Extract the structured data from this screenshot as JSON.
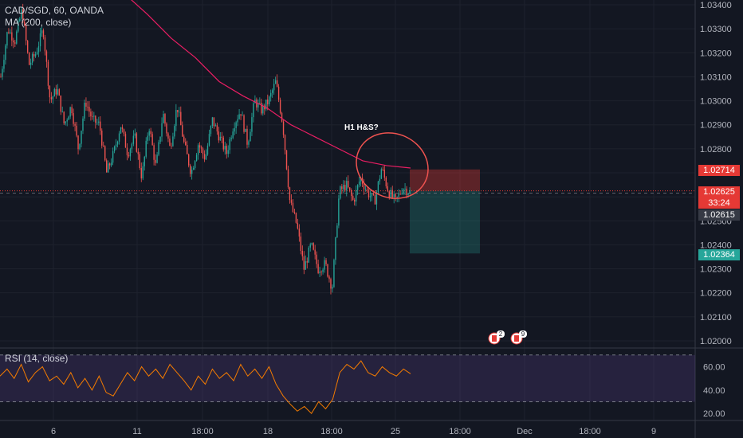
{
  "header": {
    "symbol_line": "CAD/SGD, 60, OANDA",
    "ma_label": "MA (200, close)",
    "rsi_label": "RSI (14, close)"
  },
  "annotation": {
    "text": "H1 H&S?"
  },
  "price_tags": {
    "stop": {
      "value": "1.02714",
      "color": "#e53935"
    },
    "current": {
      "value": "1.02625",
      "color": "#e53935"
    },
    "countdown": {
      "value": "33:24",
      "color": "#e53935"
    },
    "crosshair": {
      "value": "1.02615",
      "color": "#363a45"
    },
    "target": {
      "value": "1.02364",
      "color": "#26a69a"
    }
  },
  "events": [
    {
      "label": "2",
      "icon": "canada-flag-icon"
    },
    {
      "label": "9",
      "icon": "canada-flag-icon"
    }
  ],
  "chart_data": {
    "type": "candlestick",
    "symbol": "CAD/SGD",
    "interval": "60",
    "source": "OANDA",
    "y_axis_ticks": [
      "1.03400",
      "1.03300",
      "1.03200",
      "1.03100",
      "1.03000",
      "1.02900",
      "1.02800",
      "1.02700",
      "1.02600",
      "1.02500",
      "1.02400",
      "1.02300",
      "1.02200",
      "1.02100",
      "1.02000"
    ],
    "ylim": [
      1.0197,
      1.0342
    ],
    "x_axis_ticks": [
      "6",
      "11",
      "18:00",
      "18",
      "18:00",
      "25",
      "18:00",
      "Dec",
      "18:00",
      "9"
    ],
    "price_path": [
      1.031,
      1.033,
      1.0325,
      1.0338,
      1.0315,
      1.032,
      1.033,
      1.03,
      1.0305,
      1.029,
      1.0298,
      1.028,
      1.03,
      1.0292,
      1.029,
      1.027,
      1.0278,
      1.029,
      1.0278,
      1.0285,
      1.0268,
      1.029,
      1.0272,
      1.0295,
      1.028,
      1.0298,
      1.0282,
      1.027,
      1.0282,
      1.0276,
      1.0292,
      1.0285,
      1.0278,
      1.029,
      1.0296,
      1.0282,
      1.03,
      1.0296,
      1.03,
      1.0308,
      1.029,
      1.0258,
      1.0248,
      1.023,
      1.024,
      1.023,
      1.0232,
      1.0222,
      1.0262,
      1.0265,
      1.0258,
      1.0268,
      1.0262,
      1.0258,
      1.0272,
      1.0262,
      1.0258,
      1.0264,
      1.0262
    ],
    "ma_200_path": [
      1.0345,
      1.0336,
      1.0326,
      1.0318,
      1.0308,
      1.0302,
      1.0297,
      1.029,
      1.0285,
      1.028,
      1.0275,
      1.0273,
      1.0272
    ],
    "trade_box": {
      "entry": 1.02625,
      "stop": 1.02714,
      "target": 1.02364
    },
    "rsi": {
      "name": "RSI (14, close)",
      "ticks": [
        "60.00",
        "40.00",
        "20.00"
      ],
      "ylim": [
        14,
        76
      ],
      "bands": [
        70,
        30
      ],
      "values": [
        52,
        58,
        50,
        62,
        47,
        55,
        60,
        48,
        52,
        45,
        55,
        42,
        50,
        40,
        52,
        38,
        35,
        45,
        55,
        48,
        60,
        52,
        58,
        50,
        62,
        55,
        48,
        40,
        52,
        45,
        58,
        50,
        55,
        48,
        62,
        52,
        58,
        50,
        60,
        45,
        35,
        28,
        22,
        26,
        20,
        30,
        24,
        32,
        55,
        62,
        58,
        65,
        55,
        52,
        60,
        55,
        52,
        58,
        54
      ]
    }
  }
}
